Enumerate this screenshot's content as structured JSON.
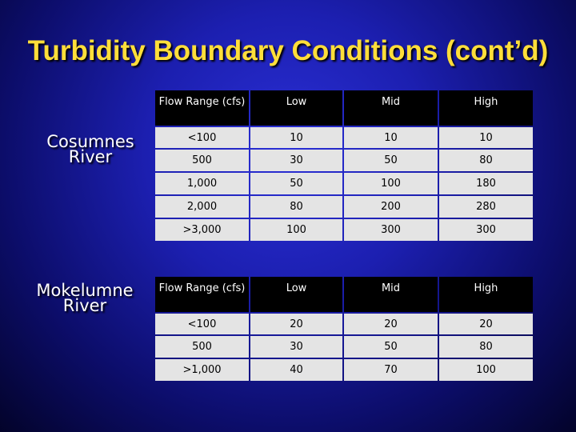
{
  "slide": {
    "title": "Turbidity Boundary Conditions (cont’d)"
  },
  "cosumnes": {
    "label_line1": "Cosumnes",
    "label_line2": "River",
    "headers": [
      "Flow Range (cfs)",
      "Low",
      "Mid",
      "High"
    ],
    "rows": [
      [
        "<100",
        "10",
        "10",
        "10"
      ],
      [
        "500",
        "30",
        "50",
        "80"
      ],
      [
        "1,000",
        "50",
        "100",
        "180"
      ],
      [
        "2,000",
        "80",
        "200",
        "280"
      ],
      [
        ">3,000",
        "100",
        "300",
        "300"
      ]
    ]
  },
  "mokelumne": {
    "label_line1": "Mokelumne",
    "label_line2": "River",
    "headers": [
      "Flow Range (cfs)",
      "Low",
      "Mid",
      "High"
    ],
    "rows": [
      [
        "<100",
        "20",
        "20",
        "20"
      ],
      [
        "500",
        "30",
        "50",
        "80"
      ],
      [
        ">1,000",
        "40",
        "70",
        "100"
      ]
    ]
  },
  "colors": {
    "title": "#ffde3a",
    "background": "#1c1fb0",
    "header_cell": "#000000",
    "body_cell": "#e4e4e4"
  }
}
